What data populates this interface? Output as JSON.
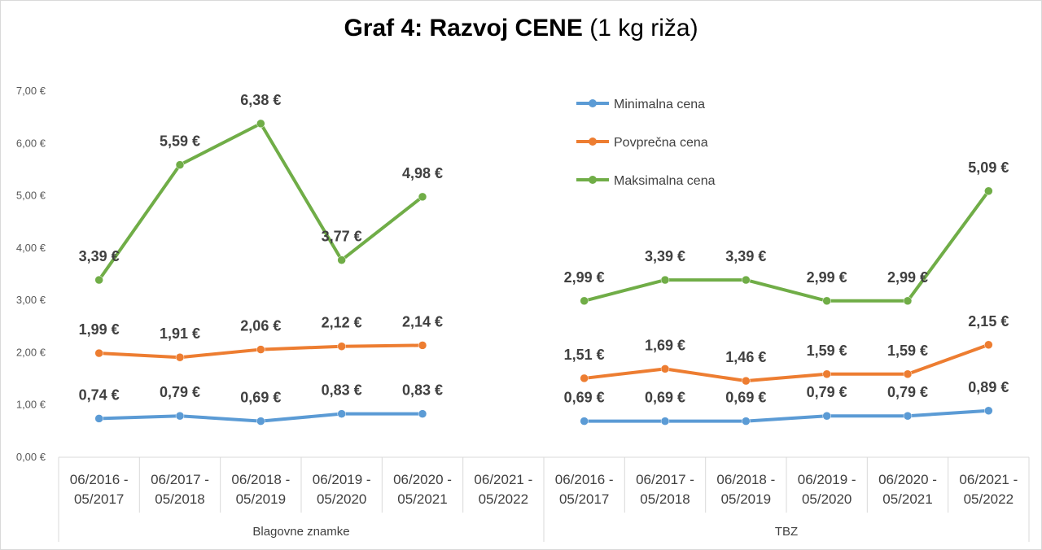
{
  "title": {
    "bold": "Graf 4: Razvoj CENE",
    "normal": "(1 kg riža)"
  },
  "chart_data": {
    "type": "line",
    "title": "Graf 4: Razvoj CENE (1 kg riža)",
    "groups": [
      {
        "name": "Blagovne znamke",
        "categories": [
          "06/2016 -\n05/2017",
          "06/2017 -\n05/2018",
          "06/2018 -\n05/2019",
          "06/2019 -\n05/2020",
          "06/2020 -\n05/2021",
          "06/2021 -\n05/2022"
        ]
      },
      {
        "name": "TBZ",
        "categories": [
          "06/2016 -\n05/2017",
          "06/2017 -\n05/2018",
          "06/2018 -\n05/2019",
          "06/2019 -\n05/2020",
          "06/2020 -\n05/2021",
          "06/2021 -\n05/2022"
        ]
      }
    ],
    "series": [
      {
        "name": "Minimalna cena",
        "color": "#5B9BD5",
        "values": [
          0.74,
          0.79,
          0.69,
          0.83,
          0.83,
          null,
          0.69,
          0.69,
          0.69,
          0.79,
          0.79,
          0.89
        ],
        "labels": [
          "0,74 €",
          "0,79 €",
          "0,69 €",
          "0,83 €",
          "0,83 €",
          "",
          "0,69 €",
          "0,69 €",
          "0,69 €",
          "0,79 €",
          "0,79 €",
          "0,89 €"
        ]
      },
      {
        "name": "Povprečna cena",
        "color": "#ED7D31",
        "values": [
          1.99,
          1.91,
          2.06,
          2.12,
          2.14,
          null,
          1.51,
          1.69,
          1.46,
          1.59,
          1.59,
          2.15
        ],
        "labels": [
          "1,99 €",
          "1,91 €",
          "2,06 €",
          "2,12 €",
          "2,14 €",
          "",
          "1,51 €",
          "1,69 €",
          "1,46 €",
          "1,59 €",
          "1,59 €",
          "2,15 €"
        ]
      },
      {
        "name": "Maksimalna cena",
        "color": "#70AD47",
        "values": [
          3.39,
          5.59,
          6.38,
          3.77,
          4.98,
          null,
          2.99,
          3.39,
          3.39,
          2.99,
          2.99,
          5.09
        ],
        "labels": [
          "3,39 €",
          "5,59 €",
          "6,38 €",
          "3,77 €",
          "4,98 €",
          "",
          "2,99 €",
          "3,39 €",
          "3,39 €",
          "2,99 €",
          "2,99 €",
          "5,09 €"
        ]
      }
    ],
    "y_ticks": [
      "0,00 €",
      "1,00 €",
      "2,00 €",
      "3,00 €",
      "4,00 €",
      "5,00 €",
      "6,00 €",
      "7,00 €"
    ],
    "ylim": [
      0,
      7
    ],
    "grid": false,
    "legend": "top-right"
  }
}
